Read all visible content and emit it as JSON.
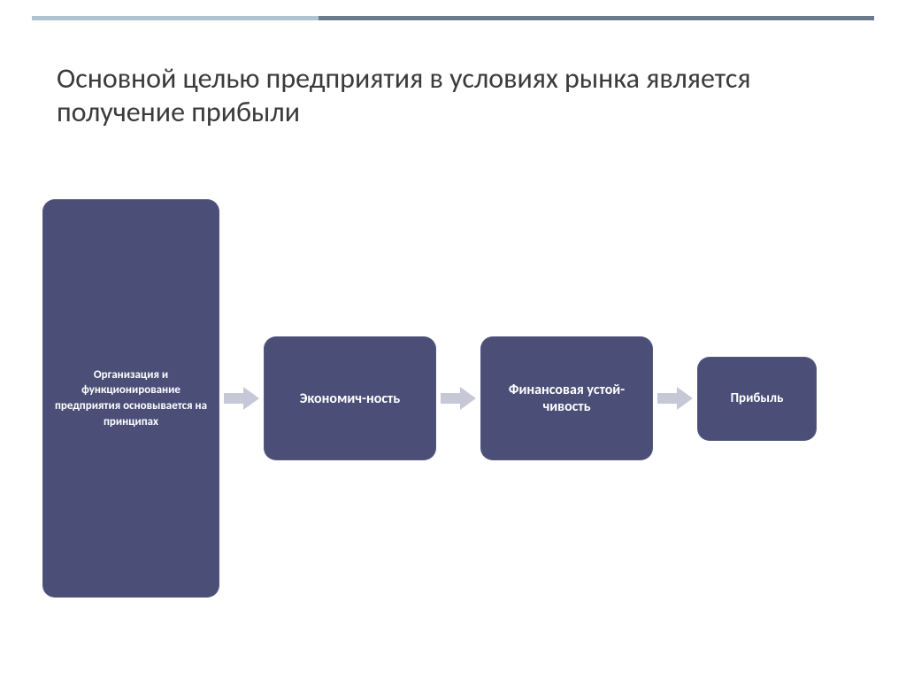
{
  "title": "Основной целью предприятия в условиях рынка является получение прибыли",
  "title_fontsize": 32,
  "title_color": "#3b3b3b",
  "background_color": "#ffffff",
  "top_rule": {
    "color_a": "#b0c4cf",
    "color_b": "#6c7a8e",
    "height": 5,
    "split_ratio": 0.34
  },
  "flow": {
    "type": "flowchart",
    "node_bg": "#4b4f78",
    "node_text": "#ffffff",
    "arrow_color": "#c6c8d8",
    "nodes": [
      {
        "id": "principles",
        "label": "Организация и функционирование предприятия основывается на принципах",
        "size": "tall"
      },
      {
        "id": "economy",
        "label": "Экономич-ность",
        "size": "mid"
      },
      {
        "id": "stability",
        "label": "Финансовая устой-чивость",
        "size": "mid"
      },
      {
        "id": "profit",
        "label": "Прибыль",
        "size": "small"
      }
    ]
  }
}
